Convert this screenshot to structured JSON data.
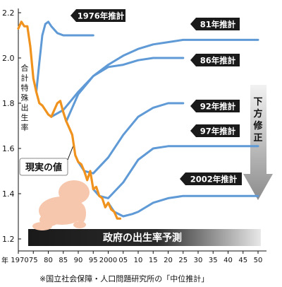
{
  "chart_data": {
    "type": "line",
    "title": "",
    "ylabel": "合計特殊出生率",
    "xlabel_prefix": "年",
    "xlim": [
      1970,
      2050
    ],
    "ylim": [
      1.2,
      2.2
    ],
    "y_ticks": [
      "2.2",
      "2.0",
      "1.8",
      "1.6",
      "1.4",
      "1.2"
    ],
    "x_ticks": [
      "1970",
      "75",
      "80",
      "85",
      "90",
      "95",
      "2000",
      "05",
      "10",
      "15",
      "20",
      "25",
      "30",
      "35",
      "40",
      "45",
      "50"
    ],
    "band_label": "政府の出生率予測",
    "arrow_label": "下方修正",
    "actual_label": "現実の値",
    "colors": {
      "actual": "#f0921e",
      "projection": "#5f9ad6",
      "label_bg": "#1a1a1a",
      "band_start": "#1a1a1a",
      "band_end": "#e6e6e6",
      "arrow": "#9a9a9a"
    },
    "series": [
      {
        "name": "現実の値",
        "kind": "actual",
        "x": [
          1970,
          1971,
          1972,
          1973,
          1974,
          1975,
          1976,
          1977,
          1978,
          1979,
          1980,
          1981,
          1982,
          1983,
          1984,
          1985,
          1986,
          1987,
          1988,
          1989,
          1990,
          1991,
          1992,
          1993,
          1994,
          1995,
          1996,
          1997,
          1998,
          1999,
          2000,
          2001,
          2002,
          2003,
          2004
        ],
        "y": [
          2.13,
          2.16,
          2.14,
          2.14,
          2.05,
          1.91,
          1.85,
          1.8,
          1.79,
          1.77,
          1.75,
          1.74,
          1.77,
          1.8,
          1.81,
          1.76,
          1.72,
          1.69,
          1.66,
          1.57,
          1.54,
          1.53,
          1.5,
          1.46,
          1.5,
          1.42,
          1.43,
          1.39,
          1.38,
          1.34,
          1.36,
          1.33,
          1.32,
          1.29,
          1.29
        ]
      },
      {
        "name": "1976年推計",
        "kind": "projection",
        "x": [
          1976,
          1977,
          1978,
          1979,
          1980,
          1981,
          1983,
          1985,
          1990,
          1995
        ],
        "y": [
          1.85,
          1.98,
          2.1,
          2.15,
          2.16,
          2.14,
          2.11,
          2.1,
          2.1,
          2.1
        ]
      },
      {
        "name": "81年推計",
        "kind": "projection",
        "x": [
          1981,
          1985,
          1990,
          1995,
          2000,
          2005,
          2010,
          2015,
          2020,
          2025,
          2030,
          2035,
          2040,
          2045,
          2050
        ],
        "y": [
          1.74,
          1.77,
          1.85,
          1.92,
          1.97,
          2.01,
          2.04,
          2.06,
          2.07,
          2.08,
          2.08,
          2.08,
          2.08,
          2.08,
          2.08
        ]
      },
      {
        "name": "86年推計",
        "kind": "projection",
        "x": [
          1985,
          1986,
          1990,
          1995,
          2000,
          2005,
          2010,
          2015,
          2020,
          2025
        ],
        "y": [
          1.76,
          1.72,
          1.84,
          1.92,
          1.96,
          1.97,
          1.99,
          2.0,
          2.0,
          2.0
        ]
      },
      {
        "name": "92年推計",
        "kind": "projection",
        "x": [
          1990,
          1992,
          1995,
          2000,
          2005,
          2010,
          2015,
          2020,
          2025
        ],
        "y": [
          1.54,
          1.5,
          1.49,
          1.56,
          1.66,
          1.74,
          1.78,
          1.8,
          1.8
        ]
      },
      {
        "name": "97年推計",
        "kind": "projection",
        "x": [
          1995,
          1997,
          2000,
          2005,
          2010,
          2015,
          2020,
          2025,
          2030,
          2035,
          2040,
          2045,
          2050
        ],
        "y": [
          1.42,
          1.39,
          1.38,
          1.45,
          1.55,
          1.6,
          1.61,
          1.61,
          1.61,
          1.61,
          1.61,
          1.61,
          1.61
        ]
      },
      {
        "name": "2002年推計",
        "kind": "projection",
        "x": [
          2000,
          2002,
          2005,
          2008,
          2010,
          2015,
          2020,
          2025,
          2030,
          2035,
          2040,
          2045,
          2050
        ],
        "y": [
          1.36,
          1.32,
          1.3,
          1.31,
          1.32,
          1.36,
          1.38,
          1.39,
          1.39,
          1.39,
          1.39,
          1.39,
          1.39
        ]
      }
    ],
    "labels": [
      {
        "text": "1976年推計"
      },
      {
        "text": "81年推計"
      },
      {
        "text": "86年推計"
      },
      {
        "text": "92年推計"
      },
      {
        "text": "97年推計"
      },
      {
        "text": "2002年推計"
      }
    ]
  },
  "footer": "※国立社会保障・人口問題研究所の「中位推計」"
}
